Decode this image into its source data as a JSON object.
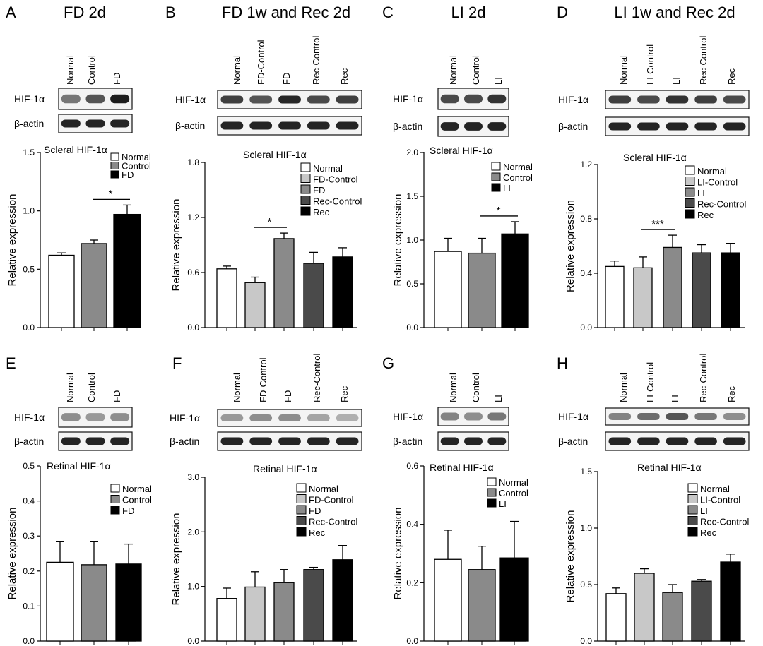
{
  "figure": {
    "row1_marker": "β-actin",
    "row2_marker": "β-actin"
  },
  "panels": [
    {
      "letter": "A",
      "title": "FD 2d",
      "lanes": [
        "Normal",
        "Control",
        "FD"
      ],
      "blot_label": "HIF-1α",
      "actin_label": "β-actin",
      "blot_intensity": [
        0.55,
        0.7,
        0.95
      ],
      "chart": {
        "type": "bar",
        "title": "Scleral HIF-1α",
        "ylabel": "Relative expression",
        "ylim": [
          0,
          1.5
        ],
        "ticks": [
          "0.0",
          "0.5",
          "1.0",
          "1.5"
        ],
        "tick_values": [
          0,
          0.5,
          1.0,
          1.5
        ],
        "categories": [
          "Normal",
          "Control",
          "FD"
        ],
        "values": [
          0.62,
          0.72,
          0.97
        ],
        "errors": [
          0.02,
          0.03,
          0.08
        ],
        "colors": [
          "#ffffff",
          "#8a8a8a",
          "#000000"
        ],
        "significance": [
          {
            "from": 1,
            "to": 2,
            "label": "*"
          }
        ]
      }
    },
    {
      "letter": "B",
      "title": "FD 1w and Rec 2d",
      "lanes": [
        "Normal",
        "FD-Control",
        "FD",
        "Rec-Control",
        "Rec"
      ],
      "blot_label": "HIF-1α",
      "actin_label": "β-actin",
      "blot_intensity": [
        0.8,
        0.7,
        0.9,
        0.75,
        0.8
      ],
      "chart": {
        "type": "bar",
        "title": "Scleral HIF-1α",
        "ylabel": "Relative expression",
        "ylim": [
          0,
          1.8
        ],
        "ticks": [
          "0.0",
          "0.6",
          "1.2",
          "1.8"
        ],
        "tick_values": [
          0,
          0.6,
          1.2,
          1.8
        ],
        "categories": [
          "Normal",
          "FD-Control",
          "FD",
          "Rec-Control",
          "Rec"
        ],
        "values": [
          0.64,
          0.49,
          0.97,
          0.7,
          0.77
        ],
        "errors": [
          0.03,
          0.06,
          0.06,
          0.12,
          0.1
        ],
        "colors": [
          "#ffffff",
          "#c8c8c8",
          "#8a8a8a",
          "#4a4a4a",
          "#000000"
        ],
        "significance": [
          {
            "from": 1,
            "to": 2,
            "label": "*"
          }
        ]
      }
    },
    {
      "letter": "C",
      "title": "LI 2d",
      "lanes": [
        "Normal",
        "Control",
        "LI"
      ],
      "blot_label": "HIF-1α",
      "actin_label": "β-actin",
      "blot_intensity": [
        0.75,
        0.75,
        0.85
      ],
      "chart": {
        "type": "bar",
        "title": "Scleral HIF-1α",
        "ylabel": "Relative expression",
        "ylim": [
          0,
          2.0
        ],
        "ticks": [
          "0.0",
          "0.5",
          "1.0",
          "1.5",
          "2.0"
        ],
        "tick_values": [
          0,
          0.5,
          1.0,
          1.5,
          2.0
        ],
        "categories": [
          "Normal",
          "Control",
          "LI"
        ],
        "values": [
          0.87,
          0.85,
          1.07
        ],
        "errors": [
          0.15,
          0.17,
          0.14
        ],
        "colors": [
          "#ffffff",
          "#8a8a8a",
          "#000000"
        ],
        "significance": [
          {
            "from": 1,
            "to": 2,
            "label": "*"
          }
        ]
      }
    },
    {
      "letter": "D",
      "title": "LI 1w and Rec 2d",
      "lanes": [
        "Normal",
        "LI-Control",
        "LI",
        "Rec-Control",
        "Rec"
      ],
      "blot_label": "HIF-1α",
      "actin_label": "β-actin",
      "blot_intensity": [
        0.8,
        0.75,
        0.85,
        0.8,
        0.75
      ],
      "chart": {
        "type": "bar",
        "title": "Scleral HIF-1α",
        "ylabel": "Relative expression",
        "ylim": [
          0,
          1.2
        ],
        "ticks": [
          "0.0",
          "0.4",
          "0.8",
          "1.2"
        ],
        "tick_values": [
          0,
          0.4,
          0.8,
          1.2
        ],
        "categories": [
          "Normal",
          "LI-Control",
          "LI",
          "Rec-Control",
          "Rec"
        ],
        "values": [
          0.45,
          0.44,
          0.59,
          0.55,
          0.55
        ],
        "errors": [
          0.04,
          0.08,
          0.09,
          0.06,
          0.07
        ],
        "colors": [
          "#ffffff",
          "#c8c8c8",
          "#8a8a8a",
          "#4a4a4a",
          "#000000"
        ],
        "significance": [
          {
            "from": 1,
            "to": 2,
            "label": "***"
          }
        ]
      }
    },
    {
      "letter": "E",
      "title": "",
      "lanes": [
        "Normal",
        "Control",
        "FD"
      ],
      "blot_label": "HIF-1α",
      "actin_label": "β-actin",
      "blot_intensity": [
        0.45,
        0.4,
        0.45
      ],
      "chart": {
        "type": "bar",
        "title": "Retinal HIF-1α",
        "ylabel": "Relative expression",
        "ylim": [
          0,
          0.5
        ],
        "ticks": [
          "0.0",
          "0.1",
          "0.2",
          "0.3",
          "0.4",
          "0.5"
        ],
        "tick_values": [
          0,
          0.1,
          0.2,
          0.3,
          0.4,
          0.5
        ],
        "categories": [
          "Normal",
          "Control",
          "FD"
        ],
        "values": [
          0.225,
          0.218,
          0.22
        ],
        "errors": [
          0.06,
          0.067,
          0.057
        ],
        "colors": [
          "#ffffff",
          "#8a8a8a",
          "#000000"
        ],
        "significance": []
      }
    },
    {
      "letter": "F",
      "title": "",
      "lanes": [
        "Normal",
        "FD-Control",
        "FD",
        "Rec-Control",
        "Rec"
      ],
      "blot_label": "HIF-1α",
      "actin_label": "β-actin",
      "blot_intensity": [
        0.4,
        0.45,
        0.45,
        0.35,
        0.3
      ],
      "chart": {
        "type": "bar",
        "title": "Retinal HIF-1α",
        "ylabel": "Relative expression",
        "ylim": [
          0,
          3.0
        ],
        "ticks": [
          "0.0",
          "1.0",
          "2.0",
          "3.0"
        ],
        "tick_values": [
          0,
          1.0,
          2.0,
          3.0
        ],
        "categories": [
          "Normal",
          "FD-Control",
          "FD",
          "Rec-Control",
          "Rec"
        ],
        "values": [
          0.78,
          0.99,
          1.07,
          1.31,
          1.49
        ],
        "errors": [
          0.19,
          0.28,
          0.24,
          0.04,
          0.26
        ],
        "colors": [
          "#ffffff",
          "#c8c8c8",
          "#8a8a8a",
          "#4a4a4a",
          "#000000"
        ],
        "significance": []
      }
    },
    {
      "letter": "G",
      "title": "",
      "lanes": [
        "Normal",
        "Control",
        "LI"
      ],
      "blot_label": "HIF-1α",
      "actin_label": "β-actin",
      "blot_intensity": [
        0.5,
        0.45,
        0.55
      ],
      "chart": {
        "type": "bar",
        "title": "Retinal HIF-1α",
        "ylabel": "Relative expression",
        "ylim": [
          0,
          0.6
        ],
        "ticks": [
          "0.0",
          "0.2",
          "0.4",
          "0.6"
        ],
        "tick_values": [
          0,
          0.2,
          0.4,
          0.6
        ],
        "categories": [
          "Normal",
          "Control",
          "LI"
        ],
        "values": [
          0.28,
          0.245,
          0.285
        ],
        "errors": [
          0.1,
          0.08,
          0.125
        ],
        "colors": [
          "#ffffff",
          "#8a8a8a",
          "#000000"
        ],
        "significance": []
      }
    },
    {
      "letter": "H",
      "title": "",
      "lanes": [
        "Normal",
        "LI-Control",
        "LI",
        "Rec-Control",
        "Rec"
      ],
      "blot_label": "HIF-1α",
      "actin_label": "β-actin",
      "blot_intensity": [
        0.5,
        0.6,
        0.7,
        0.55,
        0.45
      ],
      "chart": {
        "type": "bar",
        "title": "Retinal HIF-1α",
        "ylabel": "Relative expression",
        "ylim": [
          0,
          1.5
        ],
        "ticks": [
          "0.0",
          "0.5",
          "1.0",
          "1.5"
        ],
        "tick_values": [
          0,
          0.5,
          1.0,
          1.5
        ],
        "categories": [
          "Normal",
          "LI-Control",
          "LI",
          "Rec-Control",
          "Rec"
        ],
        "values": [
          0.42,
          0.6,
          0.43,
          0.53,
          0.7
        ],
        "errors": [
          0.05,
          0.04,
          0.07,
          0.015,
          0.07
        ],
        "colors": [
          "#ffffff",
          "#c8c8c8",
          "#8a8a8a",
          "#4a4a4a",
          "#000000"
        ],
        "significance": []
      }
    }
  ],
  "chart_data": [
    {
      "panel": "A",
      "type": "bar",
      "title": "Scleral HIF-1α",
      "ylabel": "Relative expression",
      "ylim": [
        0,
        1.5
      ],
      "categories": [
        "Normal",
        "Control",
        "FD"
      ],
      "values": [
        0.62,
        0.72,
        0.97
      ],
      "errors": [
        0.02,
        0.03,
        0.08
      ]
    },
    {
      "panel": "B",
      "type": "bar",
      "title": "Scleral HIF-1α",
      "ylabel": "Relative expression",
      "ylim": [
        0,
        1.8
      ],
      "categories": [
        "Normal",
        "FD-Control",
        "FD",
        "Rec-Control",
        "Rec"
      ],
      "values": [
        0.64,
        0.49,
        0.97,
        0.7,
        0.77
      ],
      "errors": [
        0.03,
        0.06,
        0.06,
        0.12,
        0.1
      ]
    },
    {
      "panel": "C",
      "type": "bar",
      "title": "Scleral HIF-1α",
      "ylabel": "Relative expression",
      "ylim": [
        0,
        2.0
      ],
      "categories": [
        "Normal",
        "Control",
        "LI"
      ],
      "values": [
        0.87,
        0.85,
        1.07
      ],
      "errors": [
        0.15,
        0.17,
        0.14
      ]
    },
    {
      "panel": "D",
      "type": "bar",
      "title": "Scleral HIF-1α",
      "ylabel": "Relative expression",
      "ylim": [
        0,
        1.2
      ],
      "categories": [
        "Normal",
        "LI-Control",
        "LI",
        "Rec-Control",
        "Rec"
      ],
      "values": [
        0.45,
        0.44,
        0.59,
        0.55,
        0.55
      ],
      "errors": [
        0.04,
        0.08,
        0.09,
        0.06,
        0.07
      ]
    },
    {
      "panel": "E",
      "type": "bar",
      "title": "Retinal HIF-1α",
      "ylabel": "Relative expression",
      "ylim": [
        0,
        0.5
      ],
      "categories": [
        "Normal",
        "Control",
        "FD"
      ],
      "values": [
        0.225,
        0.218,
        0.22
      ],
      "errors": [
        0.06,
        0.067,
        0.057
      ]
    },
    {
      "panel": "F",
      "type": "bar",
      "title": "Retinal HIF-1α",
      "ylabel": "Relative expression",
      "ylim": [
        0,
        3.0
      ],
      "categories": [
        "Normal",
        "FD-Control",
        "FD",
        "Rec-Control",
        "Rec"
      ],
      "values": [
        0.78,
        0.99,
        1.07,
        1.31,
        1.49
      ],
      "errors": [
        0.19,
        0.28,
        0.24,
        0.04,
        0.26
      ]
    },
    {
      "panel": "G",
      "type": "bar",
      "title": "Retinal HIF-1α",
      "ylabel": "Relative expression",
      "ylim": [
        0,
        0.6
      ],
      "categories": [
        "Normal",
        "Control",
        "LI"
      ],
      "values": [
        0.28,
        0.245,
        0.285
      ],
      "errors": [
        0.1,
        0.08,
        0.125
      ]
    },
    {
      "panel": "H",
      "type": "bar",
      "title": "Retinal HIF-1α",
      "ylabel": "Relative expression",
      "ylim": [
        0,
        1.5
      ],
      "categories": [
        "Normal",
        "LI-Control",
        "LI",
        "Rec-Control",
        "Rec"
      ],
      "values": [
        0.42,
        0.6,
        0.43,
        0.53,
        0.7
      ],
      "errors": [
        0.05,
        0.04,
        0.07,
        0.015,
        0.07
      ]
    }
  ]
}
